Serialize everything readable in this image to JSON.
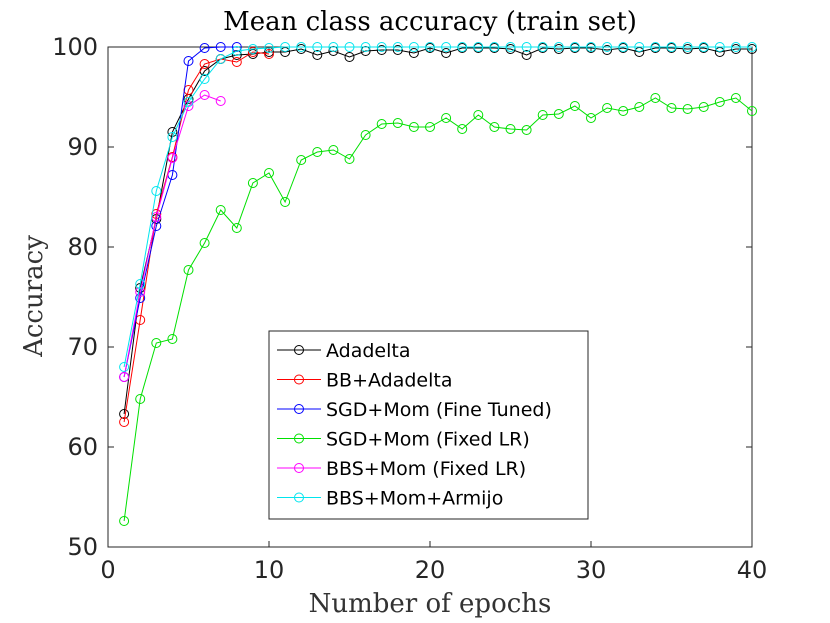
{
  "chart_data": {
    "type": "line",
    "title": "Mean class accuracy (train set)",
    "xlabel": "Number of epochs",
    "ylabel": "Accuracy",
    "xlim": [
      0,
      40
    ],
    "ylim": [
      50,
      100
    ],
    "xticks": [
      0,
      10,
      20,
      30,
      40
    ],
    "yticks": [
      50,
      60,
      70,
      80,
      90,
      100
    ],
    "grid": false,
    "legend_position": "center",
    "series": [
      {
        "name": "Adadelta",
        "color": "#000000",
        "x": [
          1,
          2,
          3,
          4,
          5,
          6,
          7,
          8,
          9,
          10,
          11,
          12,
          13,
          14,
          15,
          16,
          17,
          18,
          19,
          20,
          21,
          22,
          23,
          24,
          25,
          26,
          27,
          28,
          29,
          30,
          31,
          32,
          33,
          34,
          35,
          36,
          37,
          38,
          39,
          40
        ],
        "values": [
          63.3,
          75.9,
          82.8,
          91.5,
          94.8,
          97.6,
          98.8,
          99.2,
          99.3,
          99.5,
          99.5,
          99.8,
          99.2,
          99.6,
          99.0,
          99.6,
          99.7,
          99.7,
          99.4,
          99.9,
          99.4,
          99.9,
          99.9,
          99.9,
          99.8,
          99.2,
          99.9,
          99.8,
          99.9,
          99.9,
          99.7,
          99.9,
          99.5,
          99.9,
          99.9,
          99.8,
          99.9,
          99.5,
          99.8,
          99.8
        ]
      },
      {
        "name": "BB+Adadelta",
        "color": "#ff0000",
        "x": [
          1,
          2,
          3,
          4,
          5,
          6,
          7,
          8,
          9,
          10
        ],
        "values": [
          62.5,
          72.7,
          83.3,
          89.0,
          95.7,
          98.3,
          98.8,
          98.5,
          99.5,
          99.3
        ]
      },
      {
        "name": "SGD+Mom (Fine Tuned)",
        "color": "#0000ff",
        "x": [
          1,
          2,
          3,
          4,
          5,
          6,
          7,
          8
        ],
        "values": [
          67.0,
          74.9,
          82.1,
          87.2,
          98.6,
          99.9,
          100,
          100
        ]
      },
      {
        "name": "SGD+Mom (Fixed LR)",
        "color": "#00e000",
        "x": [
          1,
          2,
          3,
          4,
          5,
          6,
          7,
          8,
          9,
          10,
          11,
          12,
          13,
          14,
          15,
          16,
          17,
          18,
          19,
          20,
          21,
          22,
          23,
          24,
          25,
          26,
          27,
          28,
          29,
          30,
          31,
          32,
          33,
          34,
          35,
          36,
          37,
          38,
          39,
          40
        ],
        "values": [
          52.6,
          64.8,
          70.4,
          70.8,
          77.7,
          80.4,
          83.7,
          81.9,
          86.4,
          87.4,
          84.5,
          88.7,
          89.5,
          89.7,
          88.8,
          91.2,
          92.3,
          92.4,
          92.0,
          92.0,
          92.9,
          91.8,
          93.2,
          92.0,
          91.8,
          91.7,
          93.2,
          93.3,
          94.1,
          92.9,
          93.9,
          93.6,
          94.0,
          94.9,
          93.9,
          93.8,
          94.0,
          94.5,
          94.9,
          93.6
        ]
      },
      {
        "name": "BBS+Mom (Fixed LR)",
        "color": "#ff00ff",
        "x": [
          1,
          2,
          3,
          4,
          5,
          6,
          7
        ],
        "values": [
          67.0,
          75.5,
          83.0,
          88.9,
          94.1,
          95.2,
          94.6
        ]
      },
      {
        "name": "BBS+Mom+Armijo",
        "color": "#00e5ee",
        "x": [
          1,
          2,
          3,
          4,
          5,
          6,
          7,
          8,
          9,
          10,
          11,
          12,
          13,
          14,
          15,
          16,
          17,
          18,
          19,
          20,
          21,
          22,
          23,
          24,
          25,
          26,
          27,
          28,
          29,
          30,
          31,
          32,
          33,
          34,
          35,
          36,
          37,
          38,
          39,
          40
        ],
        "values": [
          68.0,
          76.3,
          85.6,
          91.0,
          94.5,
          96.8,
          98.8,
          99.6,
          99.8,
          99.9,
          100,
          100,
          100,
          100,
          100,
          100,
          100,
          100,
          100,
          100,
          100,
          100,
          100,
          100,
          100,
          100,
          100,
          100,
          100,
          100,
          100,
          100,
          100,
          100,
          100,
          100,
          100,
          100,
          100,
          100
        ]
      }
    ]
  }
}
